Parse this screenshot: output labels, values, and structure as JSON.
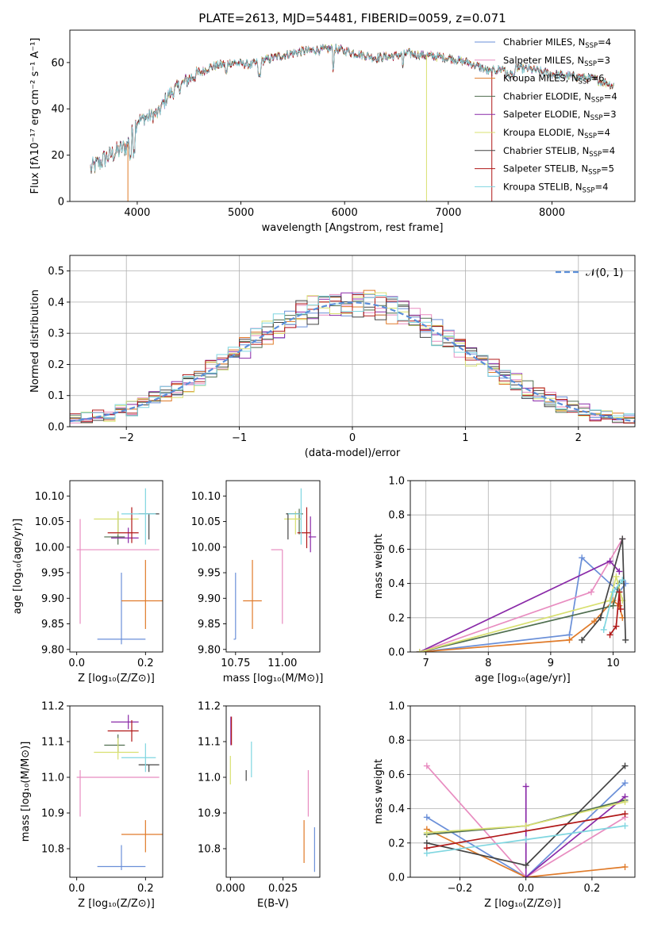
{
  "colors": {
    "chabrier_miles": "#6a8fd8",
    "salpeter_miles": "#e88cc0",
    "kroupa_miles": "#e07b2a",
    "chabrier_elodie": "#4f6e4f",
    "salpeter_elodie": "#8a2aa8",
    "kroupa_elodie": "#d8e070",
    "chabrier_stelib": "#444444",
    "salpeter_stelib": "#b01818",
    "kroupa_stelib": "#7fd6e0",
    "gaussian": "#5b8fd9"
  },
  "chart_data": [
    {
      "id": "spectrum",
      "type": "line",
      "title": "PLATE=2613, MJD=54481, FIBERID=0059, z=0.071",
      "xlabel": "wavelength [Angstrom, rest frame]",
      "ylabel": "Flux [fλ10⁻¹⁷ erg cm⁻² s⁻¹ A⁻¹]",
      "xlim": [
        3350,
        8800
      ],
      "ylim": [
        0,
        74
      ],
      "xticks": [
        4000,
        5000,
        6000,
        7000,
        8000
      ],
      "yticks": [
        0,
        20,
        40,
        60
      ],
      "grid": false,
      "legend_position": "top-right",
      "continuum": {
        "x": [
          3550,
          3700,
          3900,
          4000,
          4200,
          4300,
          4500,
          4700,
          4900,
          5100,
          5300,
          5600,
          5900,
          6100,
          6300,
          6500,
          6600,
          6800,
          7000,
          7200,
          7400,
          7600,
          7800,
          8000,
          8200,
          8400,
          8600
        ],
        "y": [
          14,
          19,
          24,
          35,
          38,
          46,
          53,
          58,
          60,
          59,
          62,
          65,
          66,
          64,
          62,
          63,
          64,
          63,
          62,
          60,
          56,
          58,
          57,
          55,
          54,
          53,
          50
        ]
      },
      "series": [
        {
          "name": "Chabrier MILES, N_SSP=4",
          "color_key": "chabrier_miles",
          "legend": "Chabrier MILES, N",
          "nssp": "=4"
        },
        {
          "name": "Salpeter MILES, N_SSP=3",
          "color_key": "salpeter_miles",
          "legend": "Salpeter MILES, N",
          "nssp": "=3"
        },
        {
          "name": "Kroupa MILES, N_SSP=6",
          "color_key": "kroupa_miles",
          "legend": "Kroupa MILES, N",
          "nssp": "=6"
        },
        {
          "name": "Chabrier ELODIE, N_SSP=4",
          "color_key": "chabrier_elodie",
          "legend": "Chabrier ELODIE, N",
          "nssp": "=4"
        },
        {
          "name": "Salpeter ELODIE, N_SSP=3",
          "color_key": "salpeter_elodie",
          "legend": "Salpeter ELODIE, N",
          "nssp": "=3"
        },
        {
          "name": "Kroupa ELODIE, N_SSP=4",
          "color_key": "kroupa_elodie",
          "legend": "Kroupa ELODIE, N",
          "nssp": "=4"
        },
        {
          "name": "Chabrier STELIB, N_SSP=4",
          "color_key": "chabrier_stelib",
          "legend": "Chabrier STELIB, N",
          "nssp": "=4"
        },
        {
          "name": "Salpeter STELIB, N_SSP=5",
          "color_key": "salpeter_stelib",
          "legend": "Salpeter STELIB, N",
          "nssp": "=5"
        },
        {
          "name": "Kroupa STELIB, N_SSP=4",
          "color_key": "kroupa_stelib",
          "legend": "Kroupa STELIB, N",
          "nssp": "=4"
        }
      ],
      "legend_subscript": "SSP"
    },
    {
      "id": "residuals",
      "type": "line",
      "xlabel": "(data-model)/error",
      "ylabel": "Normed distribution",
      "xlim": [
        -2.5,
        2.5
      ],
      "ylim": [
        0,
        0.55
      ],
      "xticks": [
        -2,
        -1,
        0,
        1,
        2
      ],
      "xticklabels": [
        "−2",
        "−1",
        "0",
        "1",
        "2"
      ],
      "yticks": [
        0.0,
        0.1,
        0.2,
        0.3,
        0.4,
        0.5
      ],
      "grid": true,
      "legend_position": "top-right",
      "gaussian_label": "𝒩(0, 1)",
      "histogram_bin_width": 0.1
    },
    {
      "id": "age_vs_z",
      "type": "scatter",
      "xlabel": "Z [log₁₀(Z/Z⊙)]",
      "ylabel": "age  [log₁₀(age/yr)]",
      "xlim": [
        -0.02,
        0.25
      ],
      "ylim": [
        9.795,
        10.13
      ],
      "xticks": [
        0.0,
        0.2
      ],
      "yticks": [
        9.8,
        9.85,
        9.9,
        9.95,
        10.0,
        10.05,
        10.1
      ],
      "points": [
        {
          "color_key": "chabrier_miles",
          "x": 0.13,
          "xerr": [
            0.07,
            0.07
          ],
          "y": 9.82,
          "yerr": [
            0.01,
            0.13
          ]
        },
        {
          "color_key": "salpeter_miles",
          "x": 0.01,
          "xerr": [
            0.01,
            0.23
          ],
          "y": 9.995,
          "yerr": [
            0.145,
            0.06
          ]
        },
        {
          "color_key": "kroupa_miles",
          "x": 0.2,
          "xerr": [
            0.07,
            0.05
          ],
          "y": 9.895,
          "yerr": [
            0.055,
            0.08
          ]
        },
        {
          "color_key": "chabrier_elodie",
          "x": 0.12,
          "xerr": [
            0.04,
            0.02
          ],
          "y": 10.02,
          "yerr": [
            0.015,
            0.05
          ]
        },
        {
          "color_key": "salpeter_elodie",
          "x": 0.15,
          "xerr": [
            0.05,
            0.03
          ],
          "y": 10.018,
          "yerr": [
            0.01,
            0.02
          ]
        },
        {
          "color_key": "kroupa_elodie",
          "x": 0.12,
          "xerr": [
            0.07,
            0.06
          ],
          "y": 10.055,
          "yerr": [
            0.03,
            0.015
          ]
        },
        {
          "color_key": "chabrier_stelib",
          "x": 0.21,
          "xerr": [
            0.03,
            0.03
          ],
          "y": 10.065,
          "yerr": [
            0.05,
            0.0
          ]
        },
        {
          "color_key": "salpeter_stelib",
          "x": 0.16,
          "xerr": [
            0.07,
            0.02
          ],
          "y": 10.028,
          "yerr": [
            0.02,
            0.05
          ]
        },
        {
          "color_key": "kroupa_stelib",
          "x": 0.2,
          "xerr": [
            0.07,
            0.03
          ],
          "y": 10.065,
          "yerr": [
            0.06,
            0.05
          ]
        }
      ]
    },
    {
      "id": "age_vs_mass",
      "type": "scatter",
      "xlabel": "mass [log₁₀(M/M⊙)]",
      "xlim": [
        10.7,
        11.2
      ],
      "ylim": [
        9.795,
        10.13
      ],
      "xticks": [
        10.75,
        11.0
      ],
      "xticklabels": [
        "10.75",
        "11.00"
      ],
      "yticks": [
        9.8,
        9.85,
        9.9,
        9.95,
        10.0,
        10.05,
        10.1
      ],
      "points": [
        {
          "color_key": "chabrier_miles",
          "x": 10.75,
          "xerr": [
            0.01,
            0.0
          ],
          "y": 9.82,
          "yerr": [
            0.0,
            0.13
          ]
        },
        {
          "color_key": "salpeter_miles",
          "x": 11.0,
          "xerr": [
            0.06,
            0.0
          ],
          "y": 9.995,
          "yerr": [
            0.145,
            0.0
          ]
        },
        {
          "color_key": "kroupa_miles",
          "x": 10.84,
          "xerr": [
            0.05,
            0.05
          ],
          "y": 9.895,
          "yerr": [
            0.055,
            0.08
          ]
        },
        {
          "color_key": "chabrier_elodie",
          "x": 11.09,
          "xerr": [
            0.07,
            0.02
          ],
          "y": 10.065,
          "yerr": [
            0.04,
            0.01
          ]
        },
        {
          "color_key": "salpeter_elodie",
          "x": 11.15,
          "xerr": [
            0.01,
            0.03
          ],
          "y": 10.02,
          "yerr": [
            0.03,
            0.04
          ]
        },
        {
          "color_key": "kroupa_elodie",
          "x": 11.07,
          "xerr": [
            0.06,
            0.03
          ],
          "y": 10.055,
          "yerr": [
            0.03,
            0.015
          ]
        },
        {
          "color_key": "chabrier_stelib",
          "x": 11.03,
          "xerr": [
            0.01,
            0.06
          ],
          "y": 10.065,
          "yerr": [
            0.05,
            0.0
          ]
        },
        {
          "color_key": "salpeter_stelib",
          "x": 11.13,
          "xerr": [
            0.05,
            0.02
          ],
          "y": 10.028,
          "yerr": [
            0.03,
            0.05
          ]
        },
        {
          "color_key": "kroupa_stelib",
          "x": 11.1,
          "xerr": [
            0.07,
            0.0
          ],
          "y": 10.065,
          "yerr": [
            0.06,
            0.05
          ]
        }
      ]
    },
    {
      "id": "sfh_age",
      "type": "line",
      "xlabel": "age  [log₁₀(age/yr)]",
      "ylabel": "mass weight",
      "xlim": [
        6.75,
        10.35
      ],
      "ylim": [
        0,
        1.0
      ],
      "xticks": [
        7,
        8,
        9,
        10
      ],
      "yticks": [
        0.0,
        0.2,
        0.4,
        0.6,
        0.8,
        1.0
      ],
      "grid": true,
      "series": [
        {
          "color_key": "chabrier_miles",
          "x": [
            6.9,
            9.3,
            9.5,
            10.1,
            10.2
          ],
          "y": [
            0.0,
            0.1,
            0.55,
            0.35,
            0.4
          ]
        },
        {
          "color_key": "salpeter_miles",
          "x": [
            6.9,
            9.65,
            10.15
          ],
          "y": [
            0.0,
            0.35,
            0.66
          ]
        },
        {
          "color_key": "kroupa_miles",
          "x": [
            6.9,
            9.3,
            9.7,
            10.0,
            10.1,
            10.15
          ],
          "y": [
            0.0,
            0.07,
            0.18,
            0.3,
            0.27,
            0.2
          ]
        },
        {
          "color_key": "chabrier_elodie",
          "x": [
            6.9,
            10.0,
            10.1
          ],
          "y": [
            0.0,
            0.27,
            0.4
          ]
        },
        {
          "color_key": "salpeter_elodie",
          "x": [
            6.9,
            9.95,
            10.1
          ],
          "y": [
            0.0,
            0.53,
            0.47
          ]
        },
        {
          "color_key": "kroupa_elodie",
          "x": [
            6.9,
            9.95,
            10.05,
            10.15
          ],
          "y": [
            0.0,
            0.3,
            0.44,
            0.3
          ]
        },
        {
          "color_key": "chabrier_stelib",
          "x": [
            9.5,
            9.8,
            10.15,
            10.2
          ],
          "y": [
            0.07,
            0.2,
            0.66,
            0.07
          ]
        },
        {
          "color_key": "salpeter_stelib",
          "x": [
            9.95,
            10.05,
            10.1,
            10.12
          ],
          "y": [
            0.1,
            0.15,
            0.35,
            0.25
          ]
        },
        {
          "color_key": "kroupa_stelib",
          "x": [
            9.85,
            10.0,
            10.15
          ],
          "y": [
            0.13,
            0.35,
            0.42
          ]
        }
      ]
    },
    {
      "id": "mass_vs_z",
      "type": "scatter",
      "xlabel": "Z [log₁₀(Z/Z⊙)]",
      "ylabel": "mass [log₁₀(M/M⊙)]",
      "xlim": [
        -0.02,
        0.25
      ],
      "ylim": [
        10.72,
        11.2
      ],
      "xticks": [
        0.0,
        0.2
      ],
      "yticks": [
        10.8,
        10.9,
        11.0,
        11.1,
        11.2
      ],
      "points": [
        {
          "color_key": "chabrier_miles",
          "x": 0.13,
          "xerr": [
            0.07,
            0.07
          ],
          "y": 10.75,
          "yerr": [
            0.01,
            0.06
          ]
        },
        {
          "color_key": "salpeter_miles",
          "x": 0.01,
          "xerr": [
            0.01,
            0.23
          ],
          "y": 11.0,
          "yerr": [
            0.11,
            0.02
          ]
        },
        {
          "color_key": "kroupa_miles",
          "x": 0.2,
          "xerr": [
            0.07,
            0.05
          ],
          "y": 10.84,
          "yerr": [
            0.05,
            0.04
          ]
        },
        {
          "color_key": "chabrier_elodie",
          "x": 0.12,
          "xerr": [
            0.04,
            0.02
          ],
          "y": 11.09,
          "yerr": [
            0.02,
            0.03
          ]
        },
        {
          "color_key": "salpeter_elodie",
          "x": 0.15,
          "xerr": [
            0.05,
            0.03
          ],
          "y": 11.155,
          "yerr": [
            0.02,
            0.02
          ]
        },
        {
          "color_key": "kroupa_elodie",
          "x": 0.12,
          "xerr": [
            0.07,
            0.06
          ],
          "y": 11.07,
          "yerr": [
            0.02,
            0.04
          ]
        },
        {
          "color_key": "chabrier_stelib",
          "x": 0.21,
          "xerr": [
            0.03,
            0.03
          ],
          "y": 11.035,
          "yerr": [
            0.02,
            0.0
          ]
        },
        {
          "color_key": "salpeter_stelib",
          "x": 0.16,
          "xerr": [
            0.07,
            0.02
          ],
          "y": 11.13,
          "yerr": [
            0.03,
            0.03
          ]
        },
        {
          "color_key": "kroupa_stelib",
          "x": 0.2,
          "xerr": [
            0.07,
            0.03
          ],
          "y": 11.055,
          "yerr": [
            0.04,
            0.04
          ]
        }
      ]
    },
    {
      "id": "mass_vs_ebv",
      "type": "scatter",
      "xlabel": "E(B-V)",
      "xlim": [
        -0.002,
        0.0425
      ],
      "ylim": [
        10.72,
        11.2
      ],
      "xticks": [
        0.0,
        0.025
      ],
      "xticklabels": [
        "0.000",
        "0.025"
      ],
      "yticks": [
        10.8,
        10.9,
        11.0,
        11.1,
        11.2
      ],
      "points": [
        {
          "color_key": "chabrier_miles",
          "x": 0.04,
          "y": 10.8,
          "yerr": [
            0.065,
            0.06
          ]
        },
        {
          "color_key": "salpeter_miles",
          "x": 0.037,
          "y": 10.95,
          "yerr": [
            0.06,
            0.07
          ]
        },
        {
          "color_key": "kroupa_miles",
          "x": 0.035,
          "y": 10.81,
          "yerr": [
            0.05,
            0.07
          ]
        },
        {
          "color_key": "salpeter_elodie",
          "x": 0.0002,
          "y": 11.14,
          "yerr": [
            0.05,
            0.03
          ]
        },
        {
          "color_key": "kroupa_elodie",
          "x": 0.0,
          "y": 11.02,
          "yerr": [
            0.04,
            0.04
          ]
        },
        {
          "color_key": "chabrier_stelib",
          "x": 0.0075,
          "y": 11.0,
          "yerr": [
            0.01,
            0.02
          ]
        },
        {
          "color_key": "salpeter_stelib",
          "x": 0.0005,
          "y": 11.12,
          "yerr": [
            0.03,
            0.05
          ]
        },
        {
          "color_key": "kroupa_stelib",
          "x": 0.01,
          "y": 11.05,
          "yerr": [
            0.05,
            0.05
          ]
        }
      ]
    },
    {
      "id": "sfh_z",
      "type": "line",
      "xlabel": "Z [log₁₀(Z/Z⊙)]",
      "ylabel": "mass weight",
      "xlim": [
        -0.35,
        0.33
      ],
      "ylim": [
        0,
        1.0
      ],
      "xticks": [
        -0.2,
        0.0,
        0.2
      ],
      "xticklabels": [
        "−0.2",
        "0.0",
        "0.2"
      ],
      "yticks": [
        0.0,
        0.2,
        0.4,
        0.6,
        0.8,
        1.0
      ],
      "grid": true,
      "series": [
        {
          "color_key": "chabrier_miles",
          "x": [
            -0.3,
            0.0,
            0.3
          ],
          "y": [
            0.35,
            0.0,
            0.55
          ]
        },
        {
          "color_key": "salpeter_miles",
          "x": [
            -0.3,
            0.0,
            0.3
          ],
          "y": [
            0.65,
            0.0,
            0.35
          ]
        },
        {
          "color_key": "kroupa_miles",
          "x": [
            -0.3,
            0.0,
            0.3
          ],
          "y": [
            0.28,
            0.0,
            0.06
          ]
        },
        {
          "color_key": "chabrier_elodie",
          "x": [
            -0.3,
            0.0,
            0.3
          ],
          "y": [
            0.25,
            0.3,
            0.45
          ]
        },
        {
          "color_key": "salpeter_elodie",
          "x": [
            0.0,
            0.0,
            0.3
          ],
          "y": [
            0.53,
            0.0,
            0.47
          ]
        },
        {
          "color_key": "kroupa_elodie",
          "x": [
            -0.3,
            0.0,
            0.3
          ],
          "y": [
            0.26,
            0.3,
            0.44
          ]
        },
        {
          "color_key": "chabrier_stelib",
          "x": [
            -0.3,
            0.0,
            0.3
          ],
          "y": [
            0.2,
            0.07,
            0.65
          ]
        },
        {
          "color_key": "salpeter_stelib",
          "x": [
            -0.3,
            0.3
          ],
          "y": [
            0.17,
            0.37
          ]
        },
        {
          "color_key": "kroupa_stelib",
          "x": [
            -0.3,
            0.0,
            0.3
          ],
          "y": [
            0.14,
            0.22,
            0.3
          ]
        }
      ]
    }
  ]
}
